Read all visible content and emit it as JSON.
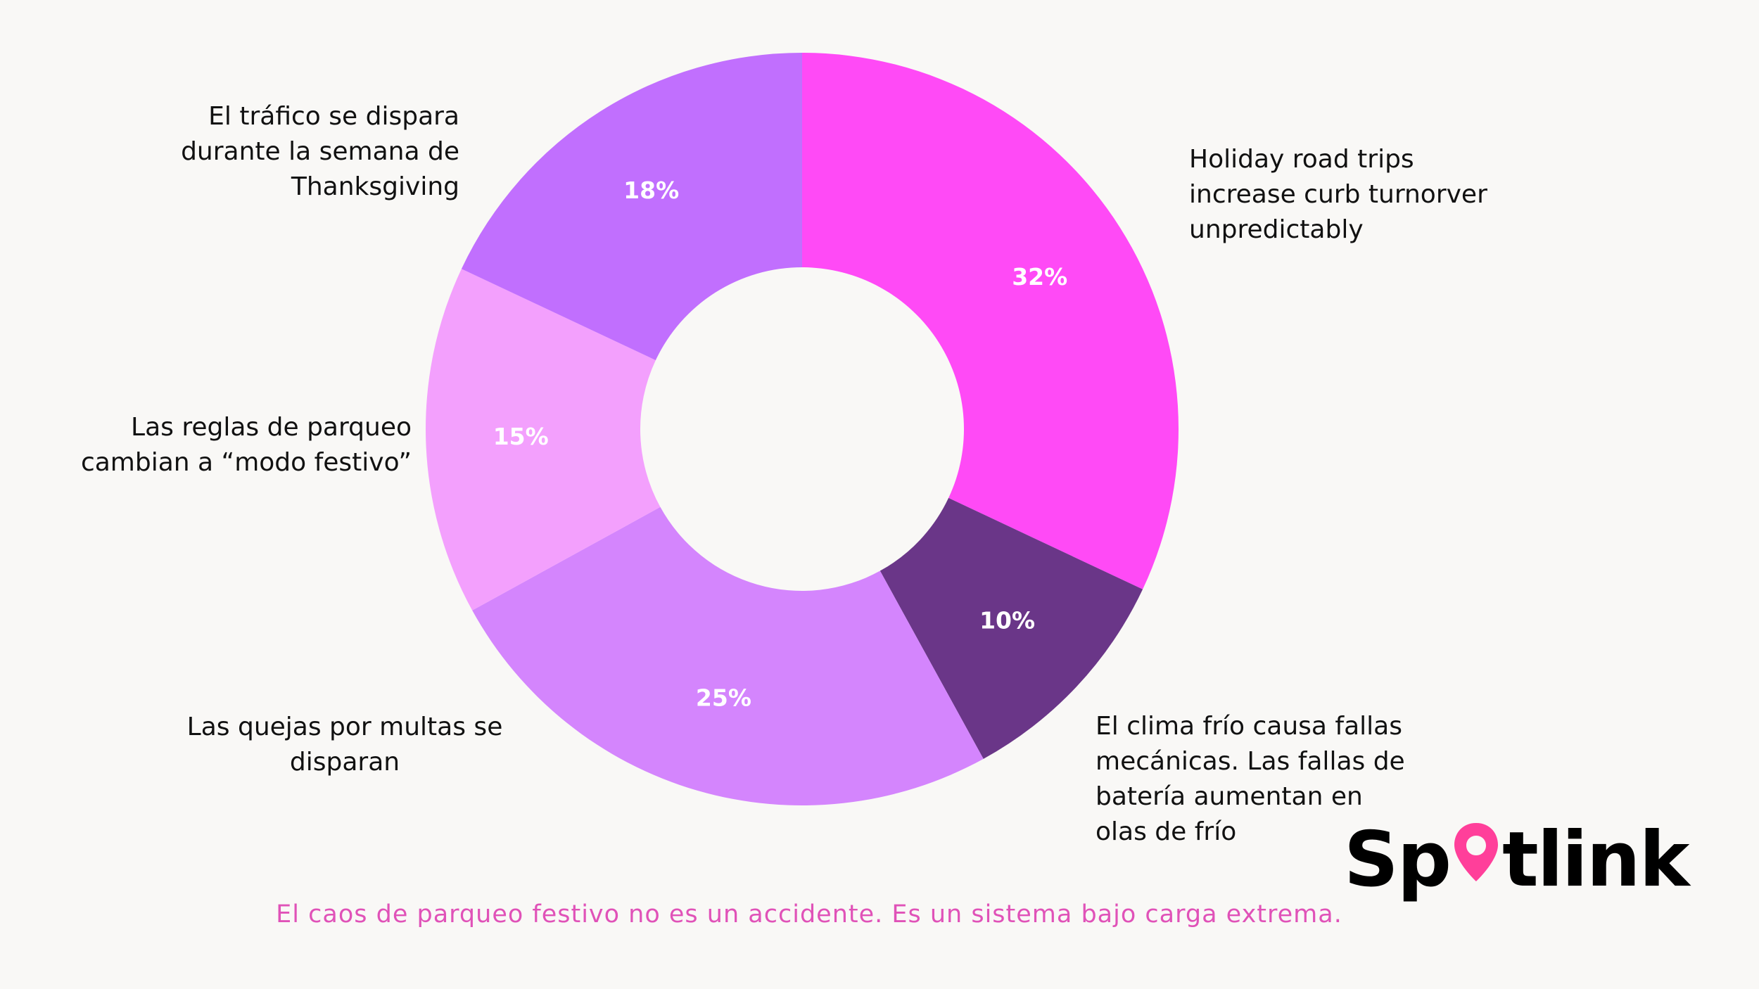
{
  "chart_data": {
    "type": "pie",
    "style": "donut",
    "slices": [
      {
        "label": "Holiday road trips\nincrease curb turnorver\nunpredictably",
        "value": 32,
        "value_label": "32%",
        "color": "#ff4af6"
      },
      {
        "label": "El clima frío causa fallas\nmecánicas. Las fallas de\nbatería aumentan en\nolas de frío",
        "value": 10,
        "value_label": "10%",
        "color": "#6a3688"
      },
      {
        "label": "Las quejas por multas se\ndisparan",
        "value": 25,
        "value_label": "25%",
        "color": "#d485fd"
      },
      {
        "label": "Las reglas de parqueo\ncambian a “modo festivo”",
        "value": 15,
        "value_label": "15%",
        "color": "#f3a0fd"
      },
      {
        "label": "El tráfico se dispara\ndurante la semana de\nThanksgiving",
        "value": 18,
        "value_label": "18%",
        "color": "#c16ffe"
      }
    ]
  },
  "footer": {
    "text": "El caos de parqueo festivo no es un accidente. Es un sistema bajo carga extrema."
  },
  "logo": {
    "text_before": "Sp",
    "text_after": "tlink",
    "pin_color": "#ff3f9a"
  }
}
